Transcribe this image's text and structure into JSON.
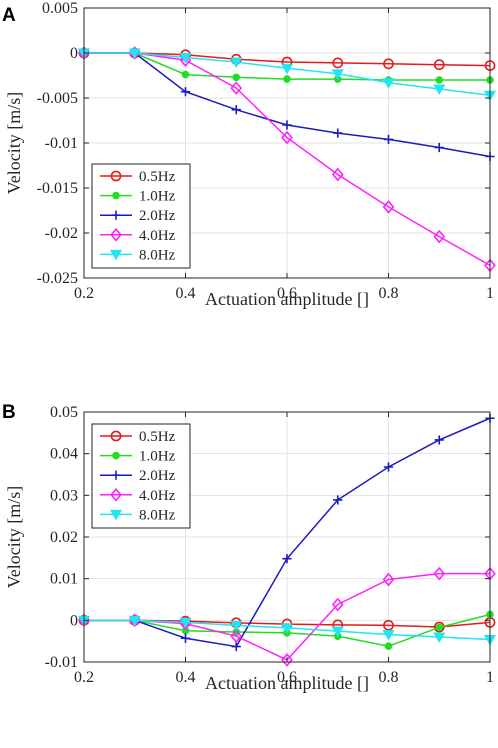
{
  "chart_data": [
    {
      "panel": "A",
      "type": "line",
      "xlabel": "Actuation amplitude []",
      "ylabel": "Velocity [m/s]",
      "xlim": [
        0.2,
        1.0
      ],
      "ylim": [
        -0.025,
        0.005
      ],
      "xticks": [
        0.2,
        0.4,
        0.6,
        0.8,
        1.0
      ],
      "xtick_labels": [
        "0.2",
        "0.4",
        "0.6",
        "0.8",
        "1"
      ],
      "yticks": [
        0.005,
        0,
        -0.005,
        -0.01,
        -0.015,
        -0.02,
        -0.025
      ],
      "ytick_labels": [
        "0.005",
        "0",
        "-0.005",
        "-0.01",
        "-0.015",
        "-0.02",
        "-0.025"
      ],
      "grid": true,
      "legend_position": "bottom-left",
      "x": [
        0.2,
        0.3,
        0.4,
        0.5,
        0.6,
        0.7,
        0.8,
        0.9,
        1.0
      ],
      "series": [
        {
          "name": "0.5Hz",
          "color": "#e41a1c",
          "marker": "circle",
          "values": [
            0,
            0,
            -0.0002,
            -0.0007,
            -0.001,
            -0.0011,
            -0.0012,
            -0.0013,
            -0.0014
          ]
        },
        {
          "name": "1.0Hz",
          "color": "#22dd22",
          "marker": "filled-circle",
          "values": [
            0,
            0,
            -0.0024,
            -0.0027,
            -0.0029,
            -0.0029,
            -0.003,
            -0.003,
            -0.003
          ]
        },
        {
          "name": "2.0Hz",
          "color": "#1a1abf",
          "marker": "plus",
          "values": [
            0,
            0,
            -0.0043,
            -0.0063,
            -0.008,
            -0.0089,
            -0.0096,
            -0.0105,
            -0.0115
          ]
        },
        {
          "name": "4.0Hz",
          "color": "#ff22ff",
          "marker": "diamond",
          "values": [
            0,
            0,
            -0.0008,
            -0.0039,
            -0.0094,
            -0.0135,
            -0.0171,
            -0.0204,
            -0.0236
          ]
        },
        {
          "name": "8.0Hz",
          "color": "#22e5f2",
          "marker": "triangle-down",
          "values": [
            0,
            0,
            -0.0005,
            -0.001,
            -0.0017,
            -0.0023,
            -0.0033,
            -0.004,
            -0.0047
          ]
        }
      ]
    },
    {
      "panel": "B",
      "type": "line",
      "xlabel": "Actuation amplitude []",
      "ylabel": "Velocity [m/s]",
      "xlim": [
        0.2,
        1.0
      ],
      "ylim": [
        -0.01,
        0.05
      ],
      "xticks": [
        0.2,
        0.4,
        0.6,
        0.8,
        1.0
      ],
      "xtick_labels": [
        "0.2",
        "0.4",
        "0.6",
        "0.8",
        "1"
      ],
      "yticks": [
        0.05,
        0.04,
        0.03,
        0.02,
        0.01,
        0,
        -0.01
      ],
      "ytick_labels": [
        "0.05",
        "0.04",
        "0.03",
        "0.02",
        "0.01",
        "0",
        "-0.01"
      ],
      "grid": true,
      "legend_position": "top-left",
      "x": [
        0.2,
        0.3,
        0.4,
        0.5,
        0.6,
        0.7,
        0.8,
        0.9,
        1.0
      ],
      "series": [
        {
          "name": "0.5Hz",
          "color": "#e41a1c",
          "marker": "circle",
          "values": [
            0,
            0,
            -0.0002,
            -0.0006,
            -0.0009,
            -0.0011,
            -0.0012,
            -0.0016,
            -0.0005
          ]
        },
        {
          "name": "1.0Hz",
          "color": "#22dd22",
          "marker": "filled-circle",
          "values": [
            0,
            0,
            -0.0025,
            -0.0028,
            -0.003,
            -0.0038,
            -0.0062,
            -0.0017,
            0.0014
          ]
        },
        {
          "name": "2.0Hz",
          "color": "#1a1abf",
          "marker": "plus",
          "values": [
            0,
            0,
            -0.0043,
            -0.0063,
            0.0148,
            0.0289,
            0.0368,
            0.0433,
            0.0485
          ]
        },
        {
          "name": "4.0Hz",
          "color": "#ff22ff",
          "marker": "diamond",
          "values": [
            0,
            0,
            -0.0008,
            -0.0038,
            -0.0095,
            0.0038,
            0.0098,
            0.0112,
            0.0112
          ]
        },
        {
          "name": "8.0Hz",
          "color": "#22e5f2",
          "marker": "triangle-down",
          "values": [
            0,
            0,
            -0.0005,
            -0.0012,
            -0.0018,
            -0.0026,
            -0.0034,
            -0.004,
            -0.0046
          ]
        }
      ]
    }
  ]
}
